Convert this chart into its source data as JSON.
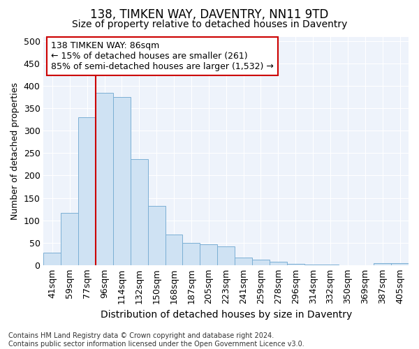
{
  "title": "138, TIMKEN WAY, DAVENTRY, NN11 9TD",
  "subtitle": "Size of property relative to detached houses in Daventry",
  "xlabel": "Distribution of detached houses by size in Daventry",
  "ylabel": "Number of detached properties",
  "categories": [
    "41sqm",
    "59sqm",
    "77sqm",
    "96sqm",
    "114sqm",
    "132sqm",
    "150sqm",
    "168sqm",
    "187sqm",
    "205sqm",
    "223sqm",
    "241sqm",
    "259sqm",
    "278sqm",
    "296sqm",
    "314sqm",
    "332sqm",
    "350sqm",
    "369sqm",
    "387sqm",
    "405sqm"
  ],
  "values": [
    27,
    117,
    330,
    385,
    375,
    237,
    132,
    68,
    50,
    47,
    42,
    17,
    12,
    8,
    3,
    1,
    1,
    0,
    0,
    5,
    5
  ],
  "bar_color": "#cfe2f3",
  "bar_edge_color": "#7bafd4",
  "plot_bg_color": "#eef3fb",
  "fig_bg_color": "#ffffff",
  "grid_color": "#ffffff",
  "annotation_text": "138 TIMKEN WAY: 86sqm\n← 15% of detached houses are smaller (261)\n85% of semi-detached houses are larger (1,532) →",
  "vline_color": "#cc0000",
  "vline_x": 2.5,
  "ylim": [
    0,
    510
  ],
  "yticks": [
    0,
    50,
    100,
    150,
    200,
    250,
    300,
    350,
    400,
    450,
    500
  ],
  "footer": "Contains HM Land Registry data © Crown copyright and database right 2024.\nContains public sector information licensed under the Open Government Licence v3.0.",
  "title_fontsize": 12,
  "subtitle_fontsize": 10,
  "xlabel_fontsize": 10,
  "ylabel_fontsize": 9,
  "tick_fontsize": 9,
  "footer_fontsize": 7,
  "annot_fontsize": 9
}
